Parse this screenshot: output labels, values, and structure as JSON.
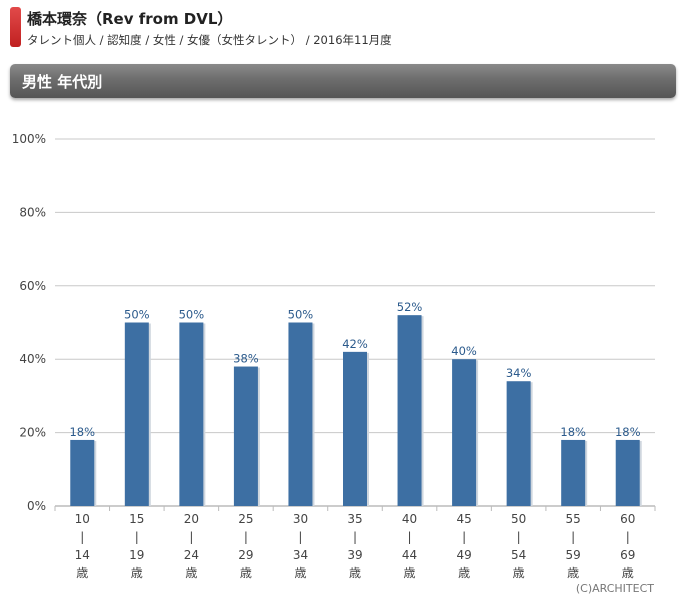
{
  "header": {
    "title": "橋本環奈（Rev from DVL）",
    "subtitle": "タレント個人 / 認知度 / 女性 / 女優（女性タレント） / 2016年11月度"
  },
  "section": {
    "title": "男性 年代別"
  },
  "copyright": "(C)ARCHITECT",
  "colors": {
    "bar": "#3d6fa3",
    "label": "#2b5a8c",
    "accent": "#d32f2f"
  },
  "chart_data": {
    "type": "bar",
    "categories": [
      [
        "10",
        "|",
        "14",
        "歳"
      ],
      [
        "15",
        "|",
        "19",
        "歳"
      ],
      [
        "20",
        "|",
        "24",
        "歳"
      ],
      [
        "25",
        "|",
        "29",
        "歳"
      ],
      [
        "30",
        "|",
        "34",
        "歳"
      ],
      [
        "35",
        "|",
        "39",
        "歳"
      ],
      [
        "40",
        "|",
        "44",
        "歳"
      ],
      [
        "45",
        "|",
        "49",
        "歳"
      ],
      [
        "50",
        "|",
        "54",
        "歳"
      ],
      [
        "55",
        "|",
        "59",
        "歳"
      ],
      [
        "60",
        "|",
        "69",
        "歳"
      ]
    ],
    "values": [
      18,
      50,
      50,
      38,
      50,
      42,
      52,
      40,
      34,
      18,
      18
    ],
    "value_labels": [
      "18%",
      "50%",
      "50%",
      "38%",
      "50%",
      "42%",
      "52%",
      "40%",
      "34%",
      "18%",
      "18%"
    ],
    "ylim": [
      0,
      100
    ],
    "yticks": [
      0,
      20,
      40,
      60,
      80,
      100
    ],
    "ytick_labels": [
      "0%",
      "20%",
      "40%",
      "60%",
      "80%",
      "100%"
    ],
    "grid": true
  }
}
